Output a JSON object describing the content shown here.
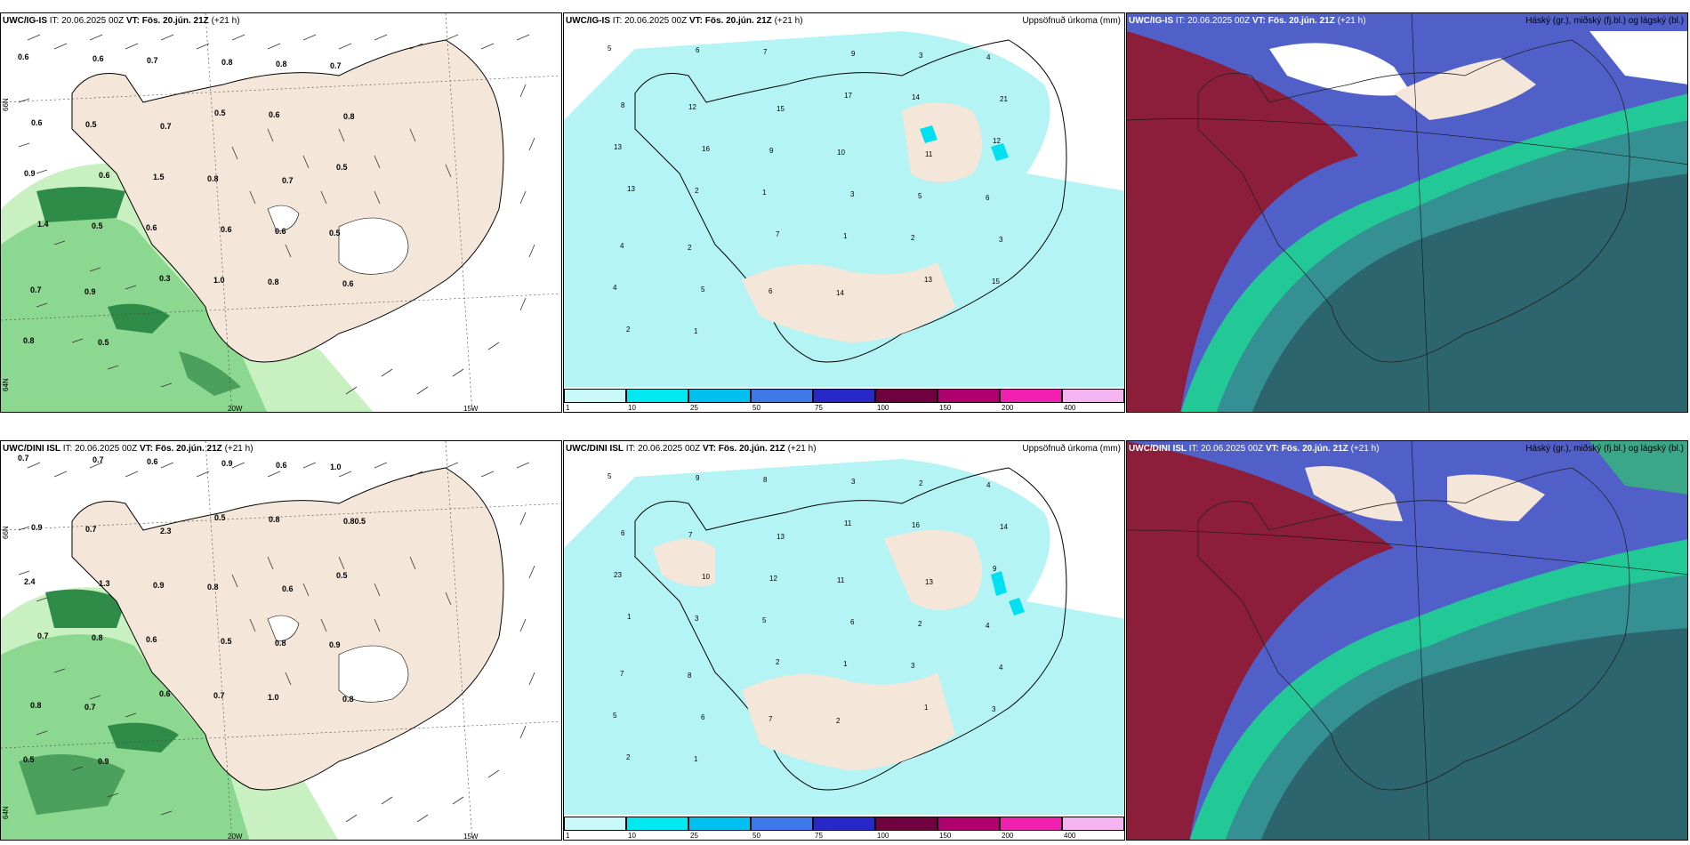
{
  "rows": [
    {
      "model": "UWC/IG-IS",
      "it_label": "IT:",
      "it_value": "20.06.2025 00Z",
      "vt_label": "VT:",
      "vt_value": "Fös. 20.jún. 21Z",
      "lead": "(+21 h)",
      "wind_values": [
        "0.6",
        "0.6",
        "0.7",
        "0.8",
        "0.8",
        "0.7",
        "0.6",
        "0.5",
        "0.7",
        "0.5",
        "0.6",
        "0.8",
        "0.9",
        "0.6",
        "1.5",
        "0.8",
        "0.7",
        "0.5",
        "1.4",
        "0.5",
        "0.6",
        "0.6",
        "0.6",
        "0.5",
        "0.7",
        "0.9",
        "0.3",
        "1.0",
        "0.8",
        "0.6",
        "0.8",
        "0.5"
      ],
      "precip_values": [
        "5",
        "6",
        "7",
        "9",
        "3",
        "4",
        "8",
        "12",
        "15",
        "17",
        "14",
        "21",
        "13",
        "16",
        "9",
        "10",
        "11",
        "12",
        "13",
        "2",
        "1",
        "3",
        "5",
        "6",
        "4",
        "2",
        "7",
        "1",
        "2",
        "3",
        "4",
        "5",
        "6",
        "14",
        "13",
        "15",
        "2",
        "1"
      ],
      "lon_labels": [
        "20W",
        "15W"
      ],
      "lat_labels": [
        "66N",
        "64N"
      ]
    },
    {
      "model": "UWC/DINI ISL",
      "it_label": "IT:",
      "it_value": "20.06.2025 00Z",
      "vt_label": "VT:",
      "vt_value": "Fös. 20.jún. 21Z",
      "lead": "(+21 h)",
      "wind_values": [
        "0.7",
        "0.7",
        "0.6",
        "0.9",
        "0.6",
        "1.0",
        "0.9",
        "0.7",
        "2.3",
        "0.5",
        "0.8",
        "0.80.5",
        "2.4",
        "1.3",
        "0.9",
        "0.8",
        "0.6",
        "0.5",
        "0.7",
        "0.8",
        "0.6",
        "0.5",
        "0.8",
        "0.9",
        "0.8",
        "0.7",
        "0.6",
        "0.7",
        "1.0",
        "0.8",
        "0.5",
        "0.9"
      ],
      "precip_values": [
        "5",
        "9",
        "8",
        "3",
        "2",
        "4",
        "6",
        "7",
        "13",
        "11",
        "16",
        "14",
        "23",
        "10",
        "12",
        "11",
        "13",
        "9",
        "1",
        "3",
        "5",
        "6",
        "2",
        "4",
        "7",
        "8",
        "2",
        "1",
        "3",
        "4",
        "5",
        "6",
        "7",
        "2",
        "1",
        "3",
        "2",
        "1"
      ],
      "lon_labels": [
        "20W",
        "15W"
      ],
      "lat_labels": [
        "66N",
        "64N"
      ]
    }
  ],
  "precip_title": "Uppsöfnuð úrkoma (mm)",
  "cloud_title": "Háský (gr.), miðský (fj.bl.) og lágský (bl.)",
  "colorbar": {
    "labels": [
      "1",
      "10",
      "25",
      "50",
      "75",
      "100",
      "150",
      "200",
      "400"
    ],
    "colors": [
      "#c8f8f8",
      "#00e8f0",
      "#00c0f0",
      "#3c78e8",
      "#2828c8",
      "#700040",
      "#b00070",
      "#f020b0",
      "#f4b4f0"
    ]
  },
  "colors": {
    "land": "#f4e6d8",
    "sea_green_light": "#c8f0c0",
    "sea_green_mid": "#8cd890",
    "sea_green_dark": "#2e8c48",
    "precip_light": "#b4f4f4",
    "cloud_high": "#8c1e3c",
    "cloud_mid": "#3c7890",
    "cloud_low": "#22c896",
    "cloud_blue": "#5060c8"
  }
}
